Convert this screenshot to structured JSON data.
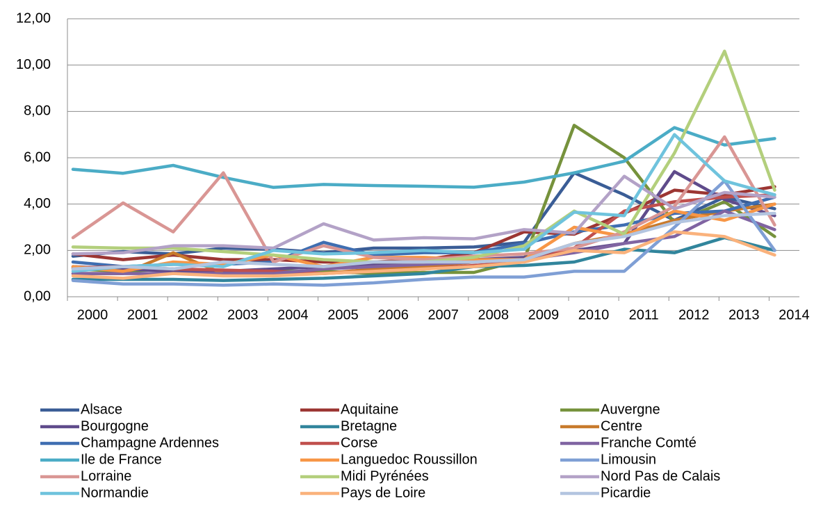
{
  "chart_data": {
    "type": "line",
    "categories": [
      "2000",
      "2001",
      "2002",
      "2003",
      "2004",
      "2005",
      "2006",
      "2007",
      "2008",
      "2009",
      "2010",
      "2011",
      "2012",
      "2013",
      "2014"
    ],
    "ylim": [
      0,
      12
    ],
    "yticks": [
      {
        "value": 0,
        "label": "0,00"
      },
      {
        "value": 2,
        "label": "2,00"
      },
      {
        "value": 4,
        "label": "4,00"
      },
      {
        "value": 6,
        "label": "6,00"
      },
      {
        "value": 8,
        "label": "8,00"
      },
      {
        "value": 10,
        "label": "10,00"
      },
      {
        "value": 12,
        "label": "12,00"
      }
    ],
    "grid": true,
    "series": [
      {
        "name": "Alsace",
        "color": "#3a5d96",
        "values": [
          1.75,
          1.95,
          1.85,
          2.1,
          2.05,
          1.9,
          2.1,
          2.1,
          2.15,
          2.35,
          5.35,
          4.4,
          3.3,
          4.3,
          3.8
        ]
      },
      {
        "name": "Aquitaine",
        "color": "#9c3633",
        "values": [
          1.85,
          1.6,
          1.8,
          1.6,
          1.6,
          1.5,
          1.5,
          1.6,
          1.9,
          2.8,
          2.7,
          3.6,
          4.6,
          4.4,
          4.75
        ]
      },
      {
        "name": "Auvergne",
        "color": "#76923c",
        "values": [
          1.2,
          1.1,
          1.2,
          1.1,
          1.1,
          1.1,
          1.0,
          1.05,
          1.05,
          1.6,
          7.4,
          6.0,
          3.2,
          4.1,
          2.6
        ]
      },
      {
        "name": "Bourgogne",
        "color": "#5f4b8b",
        "values": [
          1.3,
          1.2,
          1.1,
          1.1,
          1.2,
          1.3,
          1.4,
          1.5,
          1.6,
          1.7,
          2.0,
          2.3,
          5.4,
          4.2,
          3.5
        ]
      },
      {
        "name": "Bretagne",
        "color": "#31859c",
        "values": [
          0.75,
          0.75,
          0.75,
          0.7,
          0.75,
          0.8,
          0.9,
          1.0,
          1.3,
          1.35,
          1.5,
          2.05,
          1.9,
          2.55,
          2.0
        ]
      },
      {
        "name": "Centre",
        "color": "#c87a2c",
        "values": [
          1.0,
          1.0,
          1.9,
          1.0,
          0.95,
          1.0,
          1.2,
          1.3,
          1.5,
          1.6,
          2.3,
          2.7,
          3.3,
          3.7,
          4.0
        ]
      },
      {
        "name": "Champagne Ardennes",
        "color": "#3f6eb1",
        "values": [
          1.5,
          1.3,
          1.4,
          1.4,
          1.5,
          2.35,
          1.8,
          1.9,
          1.9,
          2.3,
          2.8,
          3.1,
          3.6,
          3.7,
          4.3
        ]
      },
      {
        "name": "Corse",
        "color": "#c0504d",
        "values": [
          1.25,
          1.3,
          1.2,
          1.15,
          1.1,
          1.0,
          1.1,
          1.2,
          1.35,
          1.5,
          2.1,
          3.7,
          4.1,
          4.3,
          4.4
        ]
      },
      {
        "name": "Franche Comté",
        "color": "#8064a2",
        "values": [
          1.0,
          1.0,
          1.0,
          1.0,
          1.0,
          1.2,
          1.3,
          1.4,
          1.5,
          1.6,
          1.9,
          2.3,
          2.6,
          3.7,
          2.9
        ]
      },
      {
        "name": "Ile de France",
        "color": "#4bacc6",
        "values": [
          5.5,
          5.33,
          5.67,
          5.15,
          4.72,
          4.85,
          4.8,
          4.77,
          4.73,
          4.95,
          5.35,
          5.85,
          7.3,
          6.55,
          6.83
        ]
      },
      {
        "name": "Languedoc Roussillon",
        "color": "#f79646",
        "values": [
          1.3,
          1.1,
          1.5,
          1.4,
          1.8,
          1.3,
          1.7,
          1.7,
          1.6,
          1.6,
          3.0,
          2.6,
          3.7,
          3.3,
          4.0
        ]
      },
      {
        "name": "Limousin",
        "color": "#7f9fd5",
        "values": [
          0.7,
          0.55,
          0.55,
          0.5,
          0.55,
          0.5,
          0.6,
          0.75,
          0.85,
          0.85,
          1.1,
          1.1,
          3.0,
          5.0,
          2.0
        ]
      },
      {
        "name": "Lorraine",
        "color": "#d99694",
        "values": [
          2.55,
          4.05,
          2.8,
          5.35,
          1.5,
          2.2,
          1.7,
          1.6,
          1.75,
          1.85,
          2.1,
          2.8,
          3.9,
          6.9,
          3.1
        ]
      },
      {
        "name": "Midi Pyrénées",
        "color": "#b3cf7c",
        "values": [
          2.15,
          2.1,
          2.1,
          1.95,
          1.8,
          1.6,
          1.5,
          1.5,
          1.7,
          2.2,
          3.7,
          2.7,
          6.2,
          10.6,
          4.6
        ]
      },
      {
        "name": "Nord Pas de Calais",
        "color": "#b3a2c7",
        "values": [
          1.85,
          1.9,
          2.2,
          2.2,
          2.1,
          3.15,
          2.45,
          2.55,
          2.5,
          2.9,
          2.75,
          5.2,
          3.8,
          4.5,
          4.3
        ]
      },
      {
        "name": "Normandie",
        "color": "#6fc3dd",
        "values": [
          1.1,
          1.3,
          1.4,
          1.3,
          2.0,
          1.85,
          1.9,
          2.0,
          1.9,
          2.05,
          3.65,
          3.5,
          7.0,
          5.0,
          4.4
        ]
      },
      {
        "name": "Pays de Loire",
        "color": "#fab27c",
        "values": [
          0.9,
          0.8,
          1.0,
          0.9,
          0.9,
          1.0,
          1.1,
          1.2,
          1.3,
          1.5,
          2.0,
          1.9,
          2.8,
          2.6,
          1.8
        ]
      },
      {
        "name": "Picardie",
        "color": "#b3c5e0",
        "values": [
          1.2,
          1.3,
          1.2,
          1.5,
          1.4,
          1.3,
          1.5,
          1.5,
          1.5,
          1.6,
          2.3,
          2.6,
          3.2,
          3.5,
          3.6
        ]
      }
    ]
  }
}
